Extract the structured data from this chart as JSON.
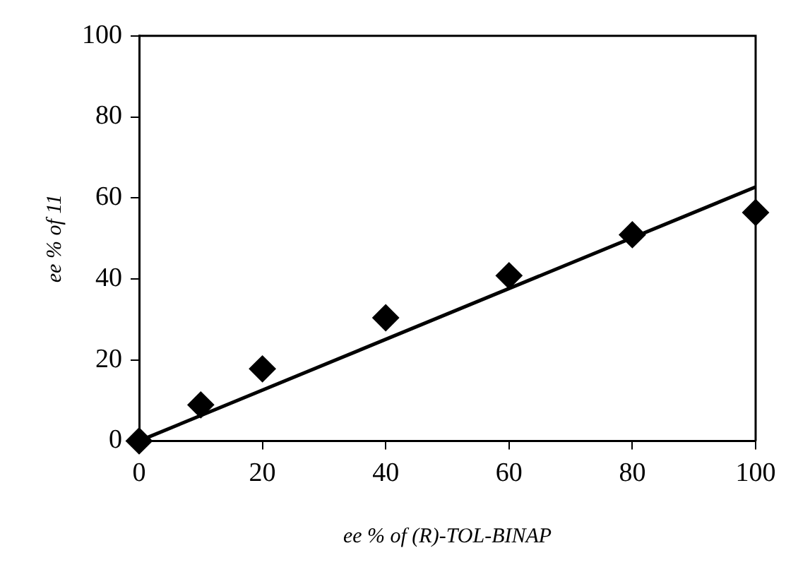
{
  "chart_data": {
    "type": "scatter",
    "xlabel": "ee % of (R)-TOL-BINAP",
    "ylabel": "ee % of 11",
    "x": [
      0,
      10,
      20,
      40,
      60,
      80,
      100
    ],
    "series": [
      {
        "type": "scatter",
        "color": "#000000",
        "values": [
          0,
          8.9,
          17.8,
          30.4,
          40.8,
          50.9,
          56.4
        ],
        "marker": "diamond"
      },
      {
        "type": "line",
        "color": "#000000",
        "x": [
          0,
          100
        ],
        "values": [
          0,
          62.7
        ],
        "marker": "none",
        "line_style": "solid"
      }
    ],
    "xlim": [
      0,
      100
    ],
    "ylim": [
      0,
      100
    ],
    "xticks": [
      0,
      20,
      40,
      60,
      80,
      100
    ],
    "yticks": [
      0,
      20,
      40,
      60,
      80,
      100
    ],
    "grid": false,
    "legend": false
  }
}
